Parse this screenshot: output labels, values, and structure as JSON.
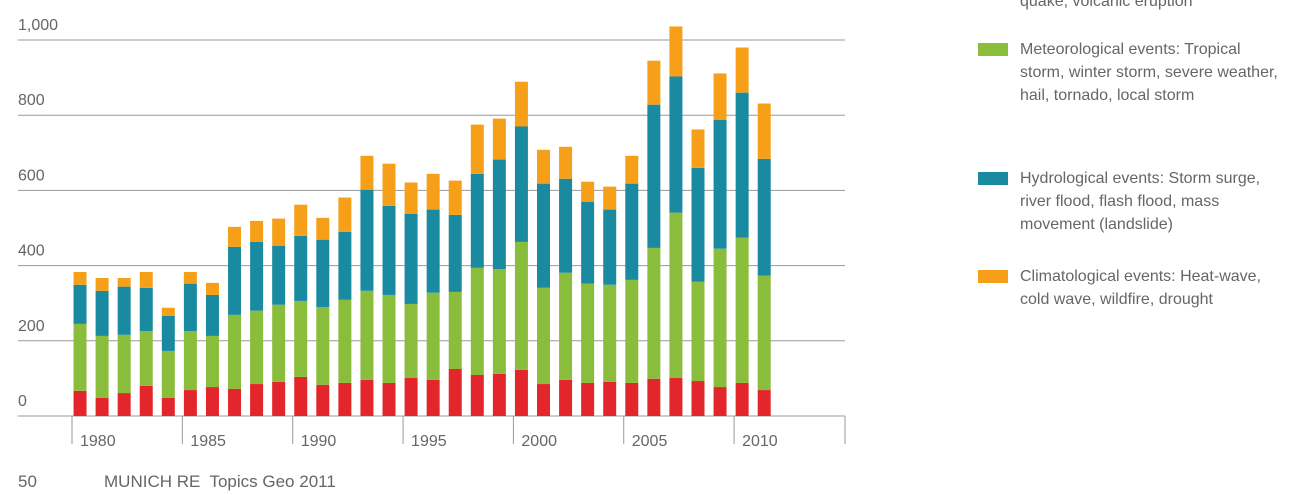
{
  "chart_data": {
    "type": "stacked_bar",
    "categories": [
      "1980",
      null,
      null,
      null,
      null,
      "1985",
      null,
      null,
      null,
      null,
      "1990",
      null,
      null,
      null,
      null,
      "1995",
      null,
      null,
      null,
      null,
      "2000",
      null,
      null,
      null,
      null,
      "2005",
      null,
      null,
      null,
      null,
      "2010",
      null
    ],
    "series": [
      {
        "name": "quake, volcanic eruption",
        "color": "#e3262b",
        "values": [
          67,
          48,
          61,
          80,
          48,
          69,
          77,
          72,
          85,
          91,
          104,
          83,
          88,
          96,
          88,
          101,
          96,
          125,
          109,
          112,
          123,
          85,
          96,
          88,
          91,
          88,
          99,
          101,
          93,
          77,
          88,
          69
        ]
      },
      {
        "name": "Meteorological events: Tropical storm, winter storm, severe weather, hail, tornado, local storm",
        "color": "#8bbd3c",
        "values": [
          178,
          165,
          155,
          146,
          125,
          157,
          136,
          197,
          195,
          205,
          202,
          207,
          221,
          237,
          234,
          197,
          232,
          205,
          285,
          279,
          340,
          256,
          285,
          264,
          258,
          274,
          348,
          440,
          264,
          368,
          386,
          304
        ]
      },
      {
        "name": "Hydrological events: Storm surge, river flood, flash flood, mass movement (landslide)",
        "color": "#1a8aa0",
        "values": [
          104,
          120,
          128,
          115,
          93,
          126,
          109,
          181,
          183,
          157,
          173,
          179,
          181,
          269,
          237,
          240,
          221,
          205,
          250,
          291,
          307,
          277,
          250,
          218,
          200,
          256,
          381,
          362,
          303,
          343,
          386,
          311
        ]
      },
      {
        "name": "Climatological events: Heat-wave, cold wave, wildfire, drought",
        "color": "#f6a01a",
        "values": [
          34,
          34,
          23,
          42,
          22,
          31,
          32,
          53,
          56,
          72,
          83,
          58,
          91,
          90,
          112,
          83,
          95,
          91,
          131,
          109,
          119,
          90,
          85,
          53,
          61,
          74,
          117,
          133,
          102,
          123,
          120,
          147
        ]
      }
    ],
    "ylim": [
      0,
      1000
    ],
    "yticks": [
      0,
      200,
      400,
      600,
      800,
      {
        "value": 1000,
        "label": "1,000"
      }
    ],
    "grid": true
  },
  "footer": {
    "page_number": "50",
    "publication": "MUNICH RE  Topics Geo 2011"
  }
}
